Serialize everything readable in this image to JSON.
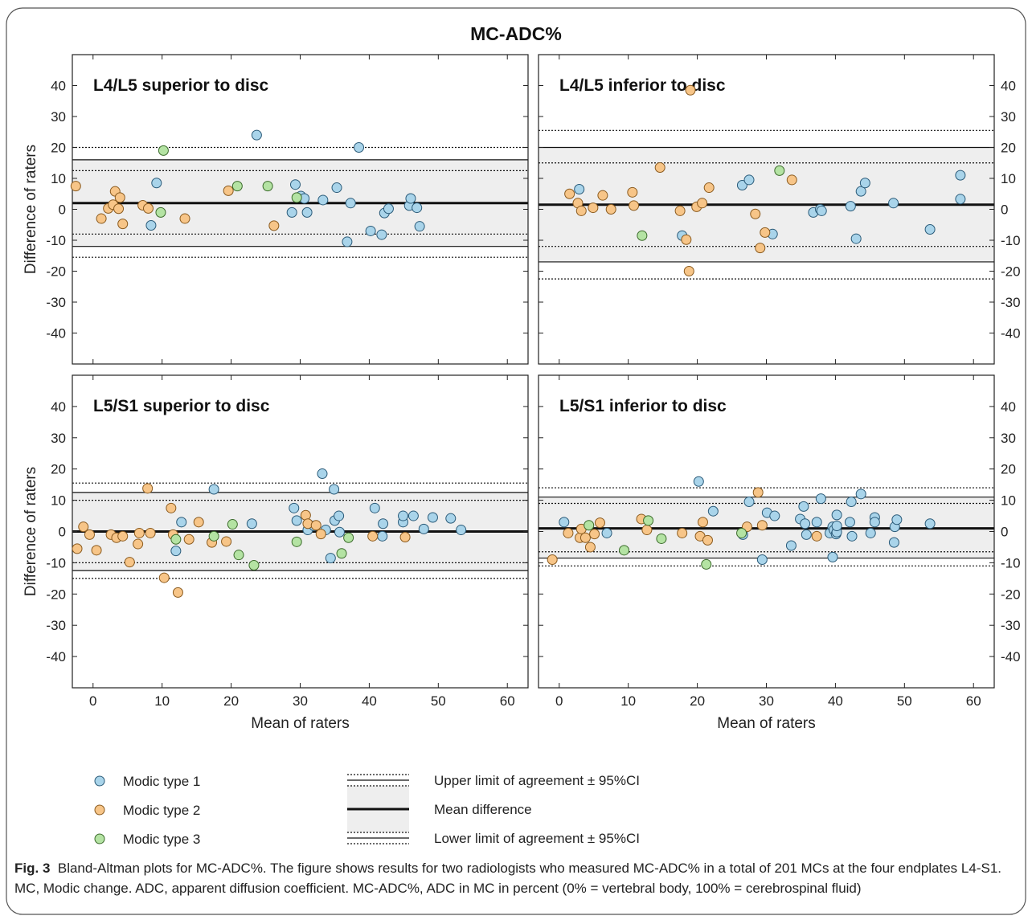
{
  "figure_title": "MC-ADC%",
  "caption": {
    "label": "Fig. 3",
    "text": "Bland-Altman plots for MC-ADC%. The figure shows results for two radiologists who measured MC-ADC% in a total of 201 MCs at the four endplates L4-S1. MC, Modic change. ADC, apparent diffusion coefficient. MC-ADC%, ADC in MC in percent (0% = vertebral body, 100% = cerebrospinal fluid)"
  },
  "legend": {
    "markers": [
      {
        "label": "Modic type 1",
        "color": "#a9d4ea"
      },
      {
        "label": "Modic type 2",
        "color": "#f7c588"
      },
      {
        "label": "Modic type 3",
        "color": "#b4e3a3"
      }
    ],
    "lines": [
      {
        "label": "Upper limit of agreement ± 95%CI",
        "style": "limit-ci"
      },
      {
        "label": "Mean difference",
        "style": "mean"
      },
      {
        "label": "Lower limit of agreement ± 95%CI",
        "style": "limit-ci"
      }
    ]
  },
  "chart_data": [
    {
      "type": "scatter",
      "title": "L4/L5 superior to disc",
      "xlabel": "",
      "ylabel": "Difference of raters",
      "xlim": [
        -3,
        63
      ],
      "ylim": [
        -50,
        50
      ],
      "xticks": [],
      "yticks": [
        40,
        30,
        20,
        10,
        0,
        -10,
        -20,
        -30,
        -40
      ],
      "mean": 2,
      "upper": {
        "loa": 16,
        "ci": [
          12.5,
          20
        ]
      },
      "lower": {
        "loa": -12,
        "ci": [
          -15.5,
          -8
        ]
      },
      "series": [
        {
          "name": "Modic type 1",
          "points": [
            [
              8.4,
              -5.2
            ],
            [
              9.2,
              8.5
            ],
            [
              23.7,
              24
            ],
            [
              28.8,
              -1
            ],
            [
              29.3,
              8
            ],
            [
              30.1,
              4.3
            ],
            [
              30.6,
              3.5
            ],
            [
              31,
              -1
            ],
            [
              33.3,
              3
            ],
            [
              35.3,
              7
            ],
            [
              36.8,
              -10.5
            ],
            [
              37.3,
              2
            ],
            [
              38.5,
              20
            ],
            [
              40.2,
              -7
            ],
            [
              41.8,
              -8.2
            ],
            [
              42.2,
              -1.2
            ],
            [
              42.8,
              0.2
            ],
            [
              45.8,
              1.2
            ],
            [
              46,
              3.5
            ],
            [
              46.9,
              0.5
            ],
            [
              47.3,
              -5.5
            ]
          ]
        },
        {
          "name": "Modic type 2",
          "points": [
            [
              -2.5,
              7.5
            ],
            [
              1.2,
              -3
            ],
            [
              2.2,
              0.3
            ],
            [
              2.9,
              1.5
            ],
            [
              3.2,
              5.8
            ],
            [
              3.7,
              0.2
            ],
            [
              3.9,
              3.8
            ],
            [
              4.3,
              -4.7
            ],
            [
              7.2,
              1.3
            ],
            [
              8,
              0.3
            ],
            [
              13.3,
              -3
            ],
            [
              19.6,
              6
            ],
            [
              26.2,
              -5.3
            ]
          ]
        },
        {
          "name": "Modic type 3",
          "points": [
            [
              9.8,
              -1
            ],
            [
              10.2,
              19
            ],
            [
              20.9,
              7.5
            ],
            [
              25.3,
              7.5
            ],
            [
              29.5,
              3.8
            ]
          ]
        }
      ]
    },
    {
      "type": "scatter",
      "title": "L4/L5 inferior to disc",
      "xlabel": "",
      "ylabel": "",
      "xlim": [
        -3,
        63
      ],
      "ylim": [
        -50,
        50
      ],
      "xticks": [],
      "yticks": [
        40,
        30,
        20,
        10,
        0,
        -10,
        -20,
        -30,
        -40
      ],
      "mean": 1.5,
      "upper": {
        "loa": 20,
        "ci": [
          15,
          25.5
        ]
      },
      "lower": {
        "loa": -17,
        "ci": [
          -22.5,
          -12
        ]
      },
      "series": [
        {
          "name": "Modic type 1",
          "points": [
            [
              2.9,
              6.5
            ],
            [
              17.8,
              -8.5
            ],
            [
              26.5,
              7.8
            ],
            [
              27.5,
              9.5
            ],
            [
              30.9,
              -8
            ],
            [
              36.8,
              -1
            ],
            [
              37.8,
              0
            ],
            [
              38,
              -0.5
            ],
            [
              42.2,
              1
            ],
            [
              43,
              -9.5
            ],
            [
              43.7,
              5.8
            ],
            [
              44.3,
              8.5
            ],
            [
              48.4,
              2
            ],
            [
              53.7,
              -6.5
            ],
            [
              58.1,
              11
            ],
            [
              58.1,
              3.3
            ]
          ]
        },
        {
          "name": "Modic type 2",
          "points": [
            [
              1.5,
              5
            ],
            [
              2.7,
              2
            ],
            [
              3.2,
              -0.5
            ],
            [
              4.9,
              0.5
            ],
            [
              6.3,
              4.5
            ],
            [
              7.5,
              0
            ],
            [
              10.6,
              5.5
            ],
            [
              10.8,
              1.2
            ],
            [
              14.6,
              13.5
            ],
            [
              17.5,
              -0.5
            ],
            [
              18.4,
              -9.8
            ],
            [
              18.8,
              -20
            ],
            [
              19,
              38.5
            ],
            [
              19.9,
              0.8
            ],
            [
              20.7,
              2
            ],
            [
              21.7,
              7
            ],
            [
              28.4,
              -1.5
            ],
            [
              29.1,
              -12.5
            ],
            [
              29.8,
              -7.5
            ],
            [
              33.7,
              9.5
            ]
          ]
        },
        {
          "name": "Modic type 3",
          "points": [
            [
              12,
              -8.5
            ],
            [
              31.9,
              12.5
            ]
          ]
        }
      ]
    },
    {
      "type": "scatter",
      "title": "L5/S1 superior to disc",
      "xlabel": "Mean of raters",
      "ylabel": "Difference of raters",
      "xlim": [
        -3,
        63
      ],
      "ylim": [
        -50,
        50
      ],
      "xticks": [
        0,
        10,
        20,
        30,
        40,
        50,
        60
      ],
      "yticks": [
        40,
        30,
        20,
        10,
        0,
        -10,
        -20,
        -30,
        -40
      ],
      "mean": 0,
      "upper": {
        "loa": 12.5,
        "ci": [
          10,
          15.5
        ]
      },
      "lower": {
        "loa": -12.5,
        "ci": [
          -15,
          -10
        ]
      },
      "series": [
        {
          "name": "Modic type 1",
          "points": [
            [
              12,
              -6.2
            ],
            [
              12.8,
              3
            ],
            [
              17.5,
              13.5
            ],
            [
              23,
              2.5
            ],
            [
              29.1,
              7.5
            ],
            [
              29.5,
              3.5
            ],
            [
              31.1,
              0.5
            ],
            [
              32,
              1.8
            ],
            [
              33.2,
              18.5
            ],
            [
              33.7,
              0.5
            ],
            [
              34.4,
              -8.5
            ],
            [
              34.9,
              13.5
            ],
            [
              35,
              3.5
            ],
            [
              35.6,
              5
            ],
            [
              35.7,
              -0.2
            ],
            [
              40.8,
              7.5
            ],
            [
              41.9,
              -1.5
            ],
            [
              42,
              2.5
            ],
            [
              44.9,
              3
            ],
            [
              44.9,
              5
            ],
            [
              46.4,
              5
            ],
            [
              47.9,
              0.8
            ],
            [
              49.2,
              4.5
            ],
            [
              51.8,
              4.2
            ],
            [
              53.3,
              0.5
            ]
          ]
        },
        {
          "name": "Modic type 2",
          "points": [
            [
              -2.3,
              -5.5
            ],
            [
              -1.4,
              1.5
            ],
            [
              -0.5,
              -1
            ],
            [
              0.5,
              -6
            ],
            [
              2.6,
              -1
            ],
            [
              3.4,
              -2
            ],
            [
              4.3,
              -1.5
            ],
            [
              5.3,
              -9.8
            ],
            [
              6.5,
              -4
            ],
            [
              6.7,
              -0.5
            ],
            [
              7.9,
              13.8
            ],
            [
              8.3,
              -0.5
            ],
            [
              10.3,
              -14.8
            ],
            [
              11.3,
              7.5
            ],
            [
              11.6,
              -1
            ],
            [
              12.3,
              -19.5
            ],
            [
              13.9,
              -2.5
            ],
            [
              15.3,
              3
            ],
            [
              17.2,
              -3.5
            ],
            [
              19.3,
              -3.2
            ],
            [
              30.8,
              5.2
            ],
            [
              31.1,
              2.5
            ],
            [
              32.3,
              2
            ],
            [
              33,
              -0.8
            ],
            [
              40.5,
              -1.5
            ],
            [
              45.2,
              -1.8
            ]
          ]
        },
        {
          "name": "Modic type 3",
          "points": [
            [
              12,
              -2.5
            ],
            [
              17.5,
              -1.5
            ],
            [
              20.2,
              2.3
            ],
            [
              21.1,
              -7.5
            ],
            [
              23.3,
              -10.8
            ],
            [
              29.5,
              -3.3
            ],
            [
              36,
              -7
            ],
            [
              37,
              -2
            ]
          ]
        }
      ]
    },
    {
      "type": "scatter",
      "title": "L5/S1 inferior to disc",
      "xlabel": "Mean of raters",
      "ylabel": "",
      "xlim": [
        -3,
        63
      ],
      "ylim": [
        -50,
        50
      ],
      "xticks": [
        0,
        10,
        20,
        30,
        40,
        50,
        60
      ],
      "yticks": [
        40,
        30,
        20,
        10,
        0,
        -10,
        -20,
        -30,
        -40
      ],
      "mean": 1,
      "upper": {
        "loa": 11,
        "ci": [
          9,
          14
        ]
      },
      "lower": {
        "loa": -8.5,
        "ci": [
          -11,
          -6.5
        ]
      },
      "series": [
        {
          "name": "Modic type 1",
          "points": [
            [
              0.7,
              3
            ],
            [
              6.9,
              -0.5
            ],
            [
              20.2,
              16
            ],
            [
              22.3,
              6.5
            ],
            [
              26.6,
              -1
            ],
            [
              27.5,
              9.5
            ],
            [
              29.4,
              -9
            ],
            [
              30.1,
              6
            ],
            [
              31.2,
              5
            ],
            [
              33.6,
              -4.5
            ],
            [
              34.9,
              4
            ],
            [
              35.4,
              8
            ],
            [
              35.6,
              2.5
            ],
            [
              35.8,
              -1
            ],
            [
              37.3,
              3
            ],
            [
              37.9,
              10.5
            ],
            [
              39.2,
              -0.5
            ],
            [
              39.6,
              -8.2
            ],
            [
              39.6,
              1.5
            ],
            [
              39.8,
              0.5
            ],
            [
              40.1,
              -0.8
            ],
            [
              40.2,
              -0.2
            ],
            [
              40.2,
              1.8
            ],
            [
              40.2,
              5.3
            ],
            [
              42.1,
              3
            ],
            [
              42.3,
              9.5
            ],
            [
              42.4,
              -1.5
            ],
            [
              43.7,
              12
            ],
            [
              45.1,
              -0.5
            ],
            [
              45.7,
              4.5
            ],
            [
              45.7,
              3
            ],
            [
              48.5,
              -3.5
            ],
            [
              48.6,
              1.5
            ],
            [
              48.9,
              3.8
            ],
            [
              53.7,
              2.5
            ]
          ]
        },
        {
          "name": "Modic type 2",
          "points": [
            [
              -1,
              -9
            ],
            [
              1.3,
              -0.5
            ],
            [
              3,
              -2
            ],
            [
              3.2,
              0.8
            ],
            [
              3.8,
              -2
            ],
            [
              4.5,
              -5
            ],
            [
              5.1,
              -0.8
            ],
            [
              5.9,
              2.8
            ],
            [
              11.9,
              4
            ],
            [
              12.7,
              0.5
            ],
            [
              17.8,
              -0.5
            ],
            [
              20.4,
              -1.5
            ],
            [
              20.8,
              3
            ],
            [
              21.5,
              -2.8
            ],
            [
              27.2,
              1.5
            ],
            [
              28.8,
              12.5
            ],
            [
              29.4,
              2
            ],
            [
              37.3,
              -1.5
            ]
          ]
        },
        {
          "name": "Modic type 3",
          "points": [
            [
              4.3,
              2
            ],
            [
              9.4,
              -6
            ],
            [
              12.9,
              3.5
            ],
            [
              14.8,
              -2.3
            ],
            [
              21.3,
              -10.5
            ],
            [
              26.4,
              -0.5
            ]
          ]
        }
      ]
    }
  ]
}
